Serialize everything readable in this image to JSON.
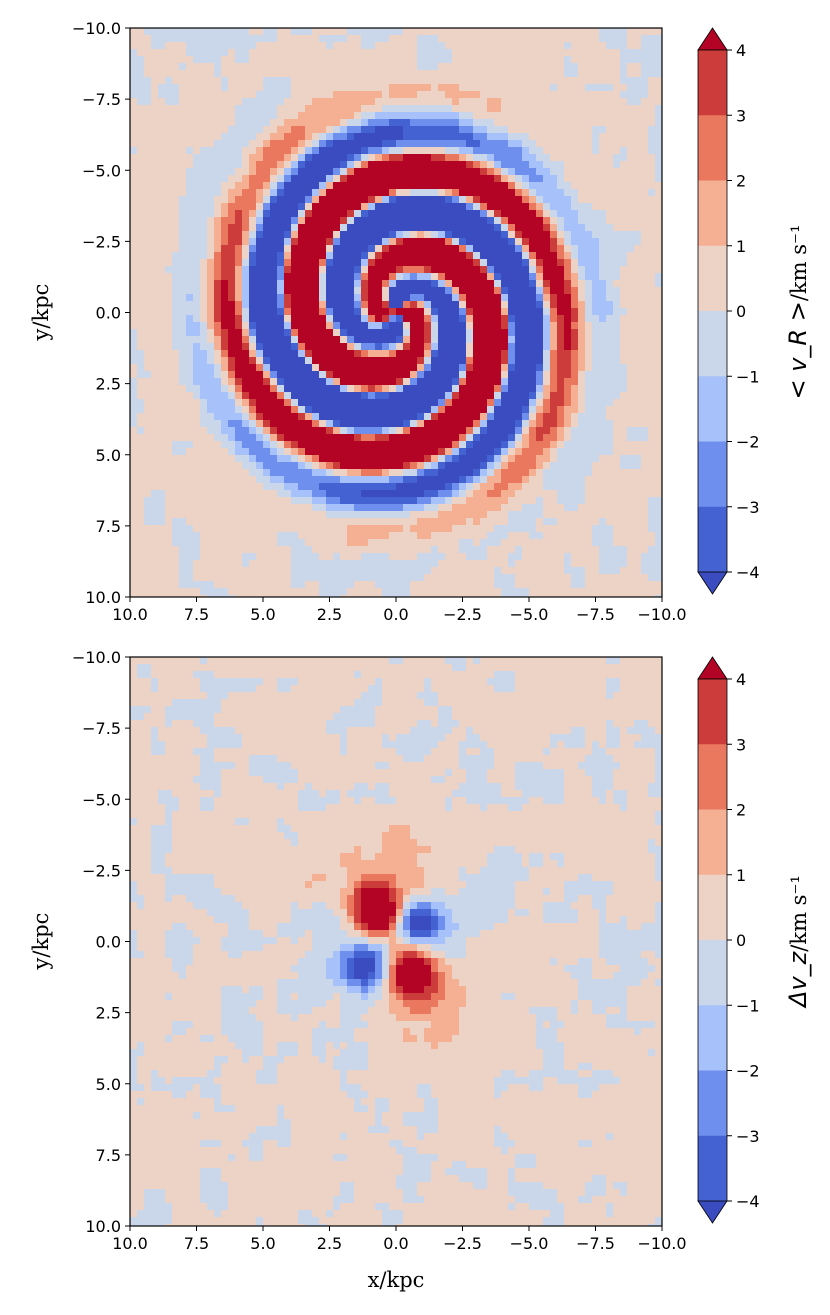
{
  "figure": {
    "colormap": "coolwarm",
    "colors": {
      "band_lt_-4": "#3b4cc0",
      "band_-4_-3": "#4562d3",
      "band_-3_-2": "#6f8fef",
      "band_-2_-1": "#a7c1fb",
      "band_-1_0": "#cad6ea",
      "band_0_1": "#ecd3c6",
      "band_1_2": "#f5b094",
      "band_2_3": "#e9785e",
      "band_3_4": "#cc3c3a",
      "band_gt_4": "#b40426",
      "contour_line": "#333333"
    }
  },
  "chart_data": [
    {
      "type": "heatmap",
      "panel": "top",
      "title": "",
      "xlabel": "x/kpc",
      "ylabel": "y/kpc",
      "xlim": [
        10.0,
        -10.0
      ],
      "ylim": [
        10.0,
        -10.0
      ],
      "xticks": [
        "10.0",
        "7.5",
        "5.0",
        "2.5",
        "0.0",
        "−2.5",
        "−5.0",
        "−7.5",
        "−10.0"
      ],
      "yticks": [
        "−10.0",
        "−7.5",
        "−5.0",
        "−2.5",
        "0.0",
        "2.5",
        "5.0",
        "7.5",
        "10.0"
      ],
      "colorbar": {
        "label_math": "< v_R >",
        "label_units": "/km s⁻¹",
        "levels": [
          -4,
          -3,
          -2,
          -1,
          0,
          1,
          2,
          3,
          4
        ],
        "ticks": [
          "−4",
          "−3",
          "−2",
          "−1",
          "0",
          "1",
          "2",
          "3",
          "4"
        ],
        "extend": "both"
      },
      "pattern": "two-armed spiral in radial velocity: alternating positive/negative arms winding outward to ~6 kpc, quadrupole at centre",
      "value_range": [
        -4,
        4
      ]
    },
    {
      "type": "heatmap",
      "panel": "bottom",
      "title": "",
      "xlabel": "x/kpc",
      "ylabel": "y/kpc",
      "xlim": [
        10.0,
        -10.0
      ],
      "ylim": [
        10.0,
        -10.0
      ],
      "xticks": [
        "10.0",
        "7.5",
        "5.0",
        "2.5",
        "0.0",
        "−2.5",
        "−5.0",
        "−7.5",
        "−10.0"
      ],
      "yticks": [
        "−10.0",
        "−7.5",
        "−5.0",
        "−2.5",
        "0.0",
        "2.5",
        "5.0",
        "7.5",
        "10.0"
      ],
      "colorbar": {
        "label_math": "Δv_z",
        "label_units": "/km s⁻¹",
        "levels": [
          -4,
          -3,
          -2,
          -1,
          0,
          1,
          2,
          3,
          4
        ],
        "ticks": [
          "−4",
          "−3",
          "−2",
          "−1",
          "0",
          "1",
          "2",
          "3",
          "4"
        ],
        "extend": "both"
      },
      "pattern": "quadrupole in vertical velocity near centre: positive lobes at (0.7,-1) and (-0.5,1), negative lobes at (-0.8,-0.6) and (1,0.9); noise elsewhere",
      "value_range": [
        -4,
        4
      ]
    }
  ]
}
